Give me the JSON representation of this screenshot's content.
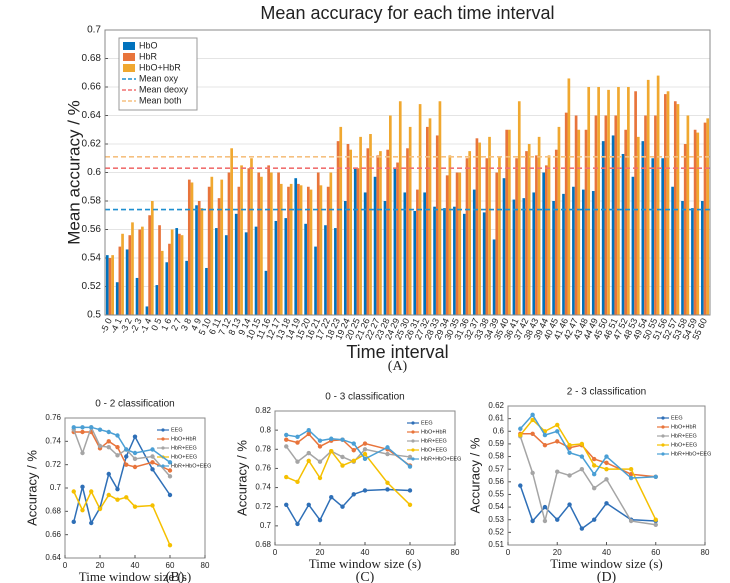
{
  "chart_data": [
    {
      "type": "bar",
      "title": "Mean accuracy for each time interval",
      "panel_label": "(A)",
      "xlabel": "Time interval",
      "ylabel": "Mean accuracy / %",
      "categories": [
        "-5 0",
        "-4 1",
        "-3 2",
        "-2 3",
        "-1 4",
        "0 5",
        "1 6",
        "2 7",
        "3 8",
        "4 9",
        "5 10",
        "6 11",
        "7 12",
        "8 13",
        "9 14",
        "10 15",
        "11 16",
        "12 17",
        "13 18",
        "14 19",
        "15 20",
        "16 21",
        "17 22",
        "18 23",
        "19 24",
        "20 25",
        "21 26",
        "22 27",
        "23 28",
        "24 29",
        "25 30",
        "26 31",
        "27 32",
        "28 33",
        "29 34",
        "30 35",
        "31 36",
        "32 37",
        "33 38",
        "34 39",
        "35 40",
        "36 41",
        "37 42",
        "38 43",
        "39 44",
        "40 45",
        "41 46",
        "42 47",
        "43 48",
        "44 49",
        "45 50",
        "46 51",
        "47 52",
        "48 53",
        "49 54",
        "50 55",
        "51 56",
        "52 57",
        "53 58",
        "54 59",
        "55 60"
      ],
      "series": [
        {
          "name": "HbO",
          "color": "#0072bd",
          "values": [
            0.542,
            0.523,
            0.546,
            0.526,
            0.506,
            0.521,
            0.537,
            0.561,
            0.538,
            0.577,
            0.533,
            0.561,
            0.556,
            0.571,
            0.558,
            0.562,
            0.531,
            0.566,
            0.568,
            0.596,
            0.564,
            0.548,
            0.563,
            0.561,
            0.58,
            0.603,
            0.586,
            0.597,
            0.58,
            0.603,
            0.586,
            0.573,
            0.586,
            0.576,
            0.575,
            0.576,
            0.571,
            0.588,
            0.572,
            0.553,
            0.596,
            0.581,
            0.582,
            0.586,
            0.6,
            0.58,
            0.585,
            0.59,
            0.588,
            0.587,
            0.622,
            0.626,
            0.613,
            0.597,
            0.622,
            0.61,
            0.61,
            0.59,
            0.58,
            0.575,
            0.58
          ]
        },
        {
          "name": "HbR",
          "color": "#e8743b",
          "values": [
            0.54,
            0.548,
            0.556,
            0.56,
            0.57,
            0.563,
            0.55,
            0.557,
            0.595,
            0.58,
            0.59,
            0.582,
            0.6,
            0.59,
            0.603,
            0.6,
            0.605,
            0.6,
            0.59,
            0.592,
            0.59,
            0.6,
            0.59,
            0.622,
            0.62,
            0.603,
            0.617,
            0.612,
            0.616,
            0.607,
            0.617,
            0.588,
            0.632,
            0.626,
            0.598,
            0.6,
            0.61,
            0.624,
            0.61,
            0.6,
            0.63,
            0.61,
            0.615,
            0.612,
            0.605,
            0.616,
            0.642,
            0.64,
            0.63,
            0.64,
            0.64,
            0.64,
            0.63,
            0.657,
            0.64,
            0.64,
            0.655,
            0.65,
            0.62,
            0.63,
            0.635
          ]
        },
        {
          "name": "HbO+HbR",
          "color": "#f0a830",
          "values": [
            0.542,
            0.557,
            0.565,
            0.562,
            0.58,
            0.545,
            0.56,
            0.556,
            0.593,
            0.575,
            0.597,
            0.595,
            0.617,
            0.605,
            0.61,
            0.597,
            0.6,
            0.592,
            0.592,
            0.591,
            0.588,
            0.591,
            0.6,
            0.632,
            0.616,
            0.625,
            0.627,
            0.615,
            0.64,
            0.65,
            0.632,
            0.648,
            0.638,
            0.65,
            0.612,
            0.6,
            0.615,
            0.621,
            0.625,
            0.611,
            0.63,
            0.65,
            0.62,
            0.625,
            0.612,
            0.632,
            0.666,
            0.63,
            0.66,
            0.66,
            0.658,
            0.66,
            0.66,
            0.625,
            0.665,
            0.668,
            0.657,
            0.648,
            0.64,
            0.628,
            0.638
          ]
        }
      ],
      "reference_lines": [
        {
          "name": "Mean oxy",
          "color": "#1f8fd0",
          "value": 0.574
        },
        {
          "name": "Mean deoxy",
          "color": "#f07070",
          "value": 0.603
        },
        {
          "name": "Mean both",
          "color": "#f5c080",
          "value": 0.611
        }
      ],
      "ylim": [
        0.5,
        0.7
      ],
      "yticks": [
        0.5,
        0.52,
        0.54,
        0.56,
        0.58,
        0.6,
        0.62,
        0.64,
        0.66,
        0.68,
        0.7
      ],
      "grid": true,
      "legend": "upper left"
    },
    {
      "type": "line",
      "title": "0 - 2 classification",
      "panel_label": "(B)",
      "xlabel": "Time window  size (s)",
      "ylabel": "Accuracy / %",
      "x": [
        5,
        10,
        15,
        20,
        25,
        30,
        35,
        40,
        50,
        60
      ],
      "series": [
        {
          "name": "EEG",
          "color": "#2e6fb7",
          "values": [
            0.671,
            0.701,
            0.67,
            0.683,
            0.712,
            0.699,
            0.727,
            0.744,
            0.716,
            0.694
          ]
        },
        {
          "name": "HbO+HbR",
          "color": "#e8743b",
          "values": [
            0.748,
            0.748,
            0.748,
            0.734,
            0.74,
            0.735,
            0.72,
            0.718,
            0.722,
            0.715
          ]
        },
        {
          "name": "HbR+EEG",
          "color": "#a5a5a5",
          "values": [
            0.75,
            0.73,
            0.752,
            0.736,
            0.735,
            0.728,
            0.733,
            0.725,
            0.727,
            0.71
          ]
        },
        {
          "name": "HbO+EEG",
          "color": "#f5c000",
          "values": [
            0.697,
            0.681,
            0.697,
            0.682,
            0.694,
            0.69,
            0.692,
            0.684,
            0.685,
            0.651
          ]
        },
        {
          "name": "HbR+HbO+EEG",
          "color": "#4a9fd5",
          "values": [
            0.752,
            0.752,
            0.752,
            0.75,
            0.748,
            0.745,
            0.733,
            0.73,
            0.733,
            0.722
          ]
        }
      ],
      "xlim": [
        0,
        80
      ],
      "xticks": [
        0,
        20,
        40,
        60,
        80
      ],
      "ylim": [
        0.64,
        0.76
      ],
      "yticks": [
        0.64,
        0.66,
        0.68,
        0.7,
        0.72,
        0.74,
        0.76
      ],
      "legend": "upper right"
    },
    {
      "type": "line",
      "title": "0 - 3 classification",
      "panel_label": "(C)",
      "xlabel": "Time window  size (s)",
      "ylabel": "Accuracy / %",
      "x": [
        5,
        10,
        15,
        20,
        25,
        30,
        35,
        40,
        50,
        60
      ],
      "series": [
        {
          "name": "EEG",
          "color": "#2e6fb7",
          "values": [
            0.722,
            0.702,
            0.722,
            0.706,
            0.73,
            0.72,
            0.733,
            0.737,
            0.738,
            0.737
          ]
        },
        {
          "name": "HbO+HbR",
          "color": "#e8743b",
          "values": [
            0.79,
            0.787,
            0.796,
            0.783,
            0.789,
            0.79,
            0.779,
            0.786,
            0.78,
            0.763
          ]
        },
        {
          "name": "HbR+EEG",
          "color": "#a5a5a5",
          "values": [
            0.783,
            0.767,
            0.776,
            0.767,
            0.778,
            0.772,
            0.767,
            0.78,
            0.775,
            0.772
          ]
        },
        {
          "name": "HbO+EEG",
          "color": "#f5c000",
          "values": [
            0.751,
            0.746,
            0.768,
            0.75,
            0.778,
            0.763,
            0.768,
            0.775,
            0.745,
            0.722
          ]
        },
        {
          "name": "HbR+HbO+EEG",
          "color": "#4a9fd5",
          "values": [
            0.795,
            0.793,
            0.8,
            0.789,
            0.791,
            0.79,
            0.786,
            0.77,
            0.782,
            0.762
          ]
        }
      ],
      "xlim": [
        0,
        80
      ],
      "xticks": [
        0,
        20,
        40,
        60,
        80
      ],
      "ylim": [
        0.68,
        0.82
      ],
      "yticks": [
        0.68,
        0.7,
        0.72,
        0.74,
        0.76,
        0.78,
        0.8,
        0.82
      ],
      "legend": "upper right"
    },
    {
      "type": "line",
      "title": "2 - 3 classification",
      "panel_label": "(D)",
      "xlabel": "Time window  size (s)",
      "ylabel": "Accuracy / %",
      "x": [
        5,
        10,
        15,
        20,
        25,
        30,
        35,
        40,
        50,
        60
      ],
      "series": [
        {
          "name": "EEG",
          "color": "#2e6fb7",
          "values": [
            0.557,
            0.529,
            0.54,
            0.53,
            0.542,
            0.523,
            0.53,
            0.543,
            0.53,
            0.529
          ]
        },
        {
          "name": "HbO+HbR",
          "color": "#e8743b",
          "values": [
            0.598,
            0.598,
            0.589,
            0.592,
            0.587,
            0.589,
            0.578,
            0.575,
            0.566,
            0.564
          ]
        },
        {
          "name": "HbR+EEG",
          "color": "#a5a5a5",
          "values": [
            0.596,
            0.567,
            0.529,
            0.568,
            0.565,
            0.57,
            0.555,
            0.562,
            0.529,
            0.526
          ]
        },
        {
          "name": "HbO+EEG",
          "color": "#f5c000",
          "values": [
            0.597,
            0.609,
            0.6,
            0.605,
            0.589,
            0.59,
            0.573,
            0.57,
            0.57,
            0.53
          ]
        },
        {
          "name": "HbR+HbO+EEG",
          "color": "#4a9fd5",
          "values": [
            0.602,
            0.613,
            0.597,
            0.6,
            0.583,
            0.58,
            0.566,
            0.58,
            0.563,
            0.564
          ]
        }
      ],
      "xlim": [
        0,
        80
      ],
      "xticks": [
        0,
        20,
        40,
        60,
        80
      ],
      "ylim": [
        0.51,
        0.62
      ],
      "yticks": [
        0.51,
        0.52,
        0.53,
        0.54,
        0.55,
        0.56,
        0.57,
        0.58,
        0.59,
        0.6,
        0.61,
        0.62
      ],
      "legend": "upper right"
    }
  ]
}
